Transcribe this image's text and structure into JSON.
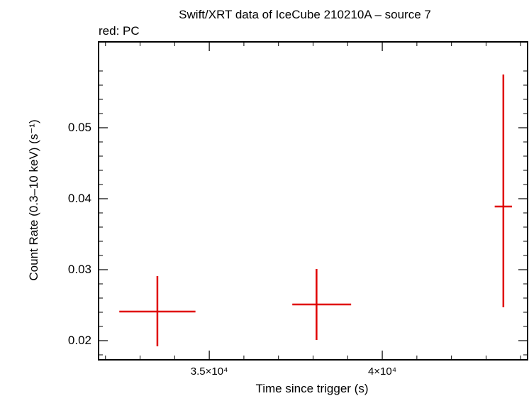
{
  "chart_data": {
    "type": "scatter",
    "title": "Swift/XRT data of IceCube 210210A – source 7",
    "subtitle": "red: PC",
    "xlabel": "Time since trigger (s)",
    "ylabel": "Count Rate (0.3–10 keV) (s⁻¹)",
    "xlim": [
      31800,
      44200
    ],
    "ylim": [
      0.0173,
      0.0621
    ],
    "x_ticks": [
      {
        "value": 35000,
        "label": "3.5×10⁴"
      },
      {
        "value": 40000,
        "label": "4×10⁴"
      }
    ],
    "y_ticks": [
      {
        "value": 0.02,
        "label": "0.02"
      },
      {
        "value": 0.03,
        "label": "0.03"
      },
      {
        "value": 0.04,
        "label": "0.04"
      },
      {
        "value": 0.05,
        "label": "0.05"
      }
    ],
    "series": [
      {
        "color": "#e00000",
        "points": [
          {
            "x": 33500,
            "xerr_lo": 1100,
            "xerr_hi": 1100,
            "y": 0.0241,
            "yerr_lo": 0.0049,
            "yerr_hi": 0.005
          },
          {
            "x": 38100,
            "xerr_lo": 700,
            "xerr_hi": 1000,
            "y": 0.0251,
            "yerr_lo": 0.005,
            "yerr_hi": 0.005
          },
          {
            "x": 43500,
            "xerr_lo": 250,
            "xerr_hi": 250,
            "y": 0.0389,
            "yerr_lo": 0.0142,
            "yerr_hi": 0.0186
          }
        ]
      }
    ]
  }
}
